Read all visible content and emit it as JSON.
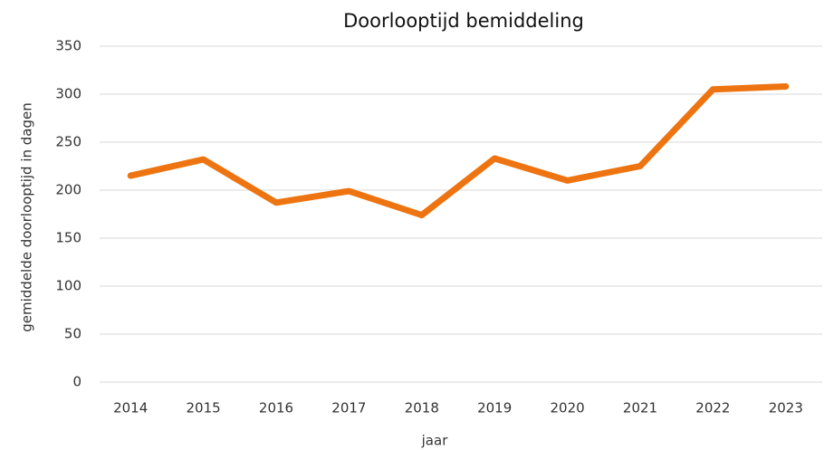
{
  "chart_data": {
    "type": "line",
    "title": "Doorlooptijd bemiddeling",
    "x_label": "jaar",
    "y_label": "gemiddelde doorlooptijd in dagen",
    "categories": [
      "2014",
      "2015",
      "2016",
      "2017",
      "2018",
      "2019",
      "2020",
      "2021",
      "2022",
      "2023"
    ],
    "values": [
      215,
      232,
      187,
      199,
      174,
      233,
      210,
      225,
      305,
      308
    ],
    "color": "#ed7410",
    "ylim": [
      0,
      350
    ],
    "yticks": [
      0,
      50,
      100,
      150,
      200,
      250,
      300,
      350
    ],
    "grid": true
  }
}
